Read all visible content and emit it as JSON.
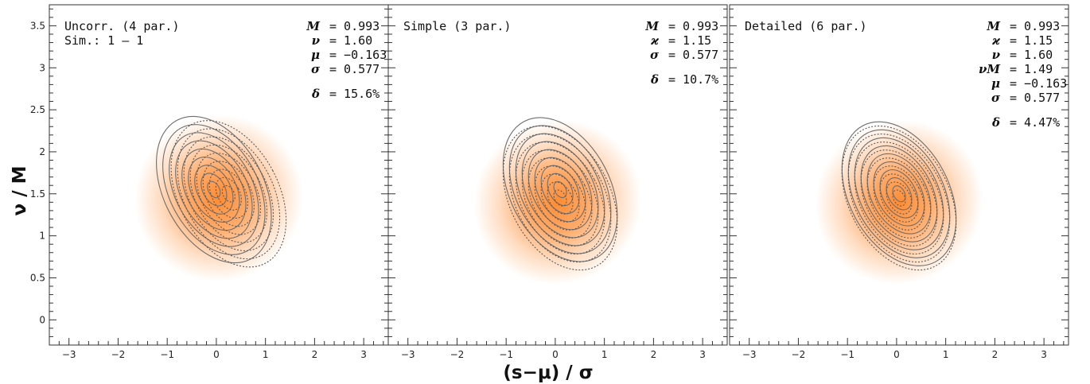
{
  "chart_data": [
    {
      "type": "contour",
      "panel_title_lines": [
        "Uncorr. (4 par.)",
        "Sim.: 1 – 1"
      ],
      "params": [
        {
          "sym": "M",
          "text": "= 0.993"
        },
        {
          "sym": "ν",
          "text": "= 1.60"
        },
        {
          "sym": "μ",
          "text": "= −0.163"
        },
        {
          "sym": "σ",
          "text": "= 0.577"
        }
      ],
      "delta": {
        "sym": "δ",
        "text": "= 15.6%"
      },
      "density_peak": {
        "x": 0.05,
        "y": 1.45
      },
      "contour_center_solid": {
        "x": -0.05,
        "y": 1.55
      },
      "contour_center_dotted": {
        "x": 0.25,
        "y": 1.5
      },
      "outer_extent_x": [
        -2.05,
        2.15
      ],
      "outer_extent_y": [
        0.3,
        3.05
      ]
    },
    {
      "type": "contour",
      "panel_title_lines": [
        "Simple (3 par.)"
      ],
      "params": [
        {
          "sym": "M",
          "text": "= 0.993"
        },
        {
          "sym": "ϰ",
          "text": "= 1.15"
        },
        {
          "sym": "σ",
          "text": "= 0.577"
        }
      ],
      "delta": {
        "sym": "δ",
        "text": "= 10.7%"
      },
      "density_peak": {
        "x": 0.05,
        "y": 1.4
      },
      "contour_center_solid": {
        "x": 0.1,
        "y": 1.55
      },
      "contour_center_dotted": {
        "x": 0.1,
        "y": 1.45
      },
      "outer_extent_x": [
        -2.0,
        2.2
      ],
      "outer_extent_y": [
        0.3,
        3.0
      ]
    },
    {
      "type": "contour",
      "panel_title_lines": [
        "Detailed (6 par.)"
      ],
      "params": [
        {
          "sym": "M",
          "text": "= 0.993"
        },
        {
          "sym": "ϰ",
          "text": "= 1.15"
        },
        {
          "sym": "ν",
          "text": "= 1.60"
        },
        {
          "sym": "νM",
          "text": "= 1.49"
        },
        {
          "sym": "μ",
          "text": "= −0.163"
        },
        {
          "sym": "σ",
          "text": "= 0.577"
        }
      ],
      "delta": {
        "sym": "δ",
        "text": "= 4.47%"
      },
      "density_peak": {
        "x": 0.05,
        "y": 1.4
      },
      "contour_center_solid": {
        "x": 0.05,
        "y": 1.5
      },
      "contour_center_dotted": {
        "x": 0.05,
        "y": 1.45
      },
      "outer_extent_x": [
        -2.0,
        2.2
      ],
      "outer_extent_y": [
        0.3,
        3.0
      ]
    }
  ],
  "axes": {
    "xlabel": "(s−μ) / σ",
    "ylabel": "ν / M",
    "xlim": [
      -3.4,
      3.5
    ],
    "ylim": [
      -0.3,
      3.75
    ],
    "xticks": [
      -3,
      -2,
      -1,
      0,
      1,
      2,
      3
    ],
    "yticks": [
      0,
      0.5,
      1,
      1.5,
      2,
      2.5,
      3,
      3.5
    ]
  },
  "colors": {
    "density": "#ff8c33",
    "solid_contour": "#6e6e6e",
    "dotted_contour": "#5a5a5a",
    "frame": "#333333"
  }
}
